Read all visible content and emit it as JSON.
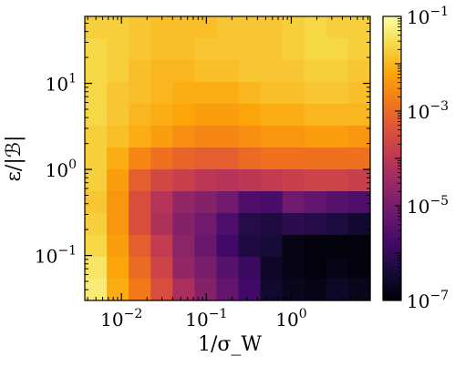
{
  "chart_data": {
    "type": "heatmap",
    "xlabel": "1/σ_W",
    "ylabel": "ε/|ℬ|",
    "x_scale": "log",
    "y_scale": "log",
    "xlim": [
      0.0037,
      8.5
    ],
    "ylim": [
      0.03,
      60
    ],
    "x_ticks": [
      {
        "value": 0.01,
        "base": "10",
        "exp": "−2"
      },
      {
        "value": 0.1,
        "base": "10",
        "exp": "−1"
      },
      {
        "value": 1,
        "base": "10",
        "exp": "0"
      }
    ],
    "y_ticks": [
      {
        "value": 0.1,
        "base": "10",
        "exp": "−1"
      },
      {
        "value": 1,
        "base": "10",
        "exp": "0"
      },
      {
        "value": 10,
        "base": "10",
        "exp": "1"
      }
    ],
    "colorbar": {
      "scale": "log",
      "range": [
        1e-07,
        0.1
      ],
      "colormap": "inferno",
      "ticks": [
        {
          "value": 1e-07,
          "base": "10",
          "exp": "−7"
        },
        {
          "value": 1e-05,
          "base": "10",
          "exp": "−5"
        },
        {
          "value": 0.001,
          "base": "10",
          "exp": "−3"
        },
        {
          "value": 0.1,
          "base": "10",
          "exp": "−1"
        }
      ]
    },
    "grid": false,
    "n_cols": 13,
    "n_rows": 13,
    "note_rows": "log10 of cell value, row 0 = top (largest ε/|ℬ|), column 0 = left (smallest 1/σ_W)",
    "log10_values": [
      [
        -1.7,
        -1.7,
        -1.8,
        -1.9,
        -1.9,
        -1.9,
        -1.8,
        -1.8,
        -1.8,
        -1.7,
        -1.6,
        -1.7,
        -1.7
      ],
      [
        -1.6,
        -1.7,
        -1.8,
        -1.9,
        -1.9,
        -1.8,
        -1.8,
        -1.8,
        -1.8,
        -1.7,
        -1.6,
        -1.6,
        -1.7
      ],
      [
        -1.6,
        -1.7,
        -1.9,
        -2.0,
        -2.0,
        -1.9,
        -1.9,
        -1.8,
        -1.8,
        -1.8,
        -1.7,
        -1.7,
        -1.8
      ],
      [
        -1.6,
        -1.8,
        -1.9,
        -2.0,
        -2.1,
        -2.1,
        -2.1,
        -2.0,
        -1.9,
        -1.9,
        -1.8,
        -1.8,
        -1.9
      ],
      [
        -1.6,
        -1.8,
        -2.0,
        -2.1,
        -2.2,
        -2.3,
        -2.3,
        -2.2,
        -2.1,
        -2.1,
        -2.0,
        -2.0,
        -2.0
      ],
      [
        -1.7,
        -1.9,
        -2.1,
        -2.3,
        -2.5,
        -2.6,
        -2.6,
        -2.5,
        -2.4,
        -2.4,
        -2.3,
        -2.3,
        -2.4
      ],
      [
        -1.7,
        -2.1,
        -2.6,
        -2.9,
        -3.1,
        -3.2,
        -3.2,
        -3.0,
        -2.9,
        -2.9,
        -2.9,
        -2.9,
        -2.9
      ],
      [
        -1.7,
        -2.3,
        -3.2,
        -3.6,
        -3.8,
        -4.0,
        -4.1,
        -4.0,
        -3.9,
        -3.8,
        -3.7,
        -3.7,
        -3.8
      ],
      [
        -1.8,
        -2.4,
        -3.5,
        -4.1,
        -4.6,
        -4.8,
        -5.1,
        -5.6,
        -5.7,
        -5.1,
        -5.3,
        -5.5,
        -5.6
      ],
      [
        -1.7,
        -2.4,
        -3.5,
        -4.2,
        -4.8,
        -5.1,
        -5.6,
        -6.2,
        -6.3,
        -6.1,
        -6.2,
        -6.3,
        -6.5
      ],
      [
        -1.6,
        -2.3,
        -3.2,
        -3.9,
        -4.7,
        -5.2,
        -5.8,
        -6.3,
        -6.4,
        -6.8,
        -6.9,
        -6.9,
        -6.9
      ],
      [
        -1.4,
        -2.2,
        -3.0,
        -3.7,
        -4.6,
        -5.0,
        -5.5,
        -5.9,
        -6.6,
        -6.8,
        -6.9,
        -6.8,
        -6.9
      ],
      [
        -1.3,
        -2.1,
        -2.8,
        -3.5,
        -4.3,
        -4.8,
        -5.3,
        -5.8,
        -6.5,
        -6.7,
        -6.8,
        -6.6,
        -6.7
      ]
    ]
  }
}
